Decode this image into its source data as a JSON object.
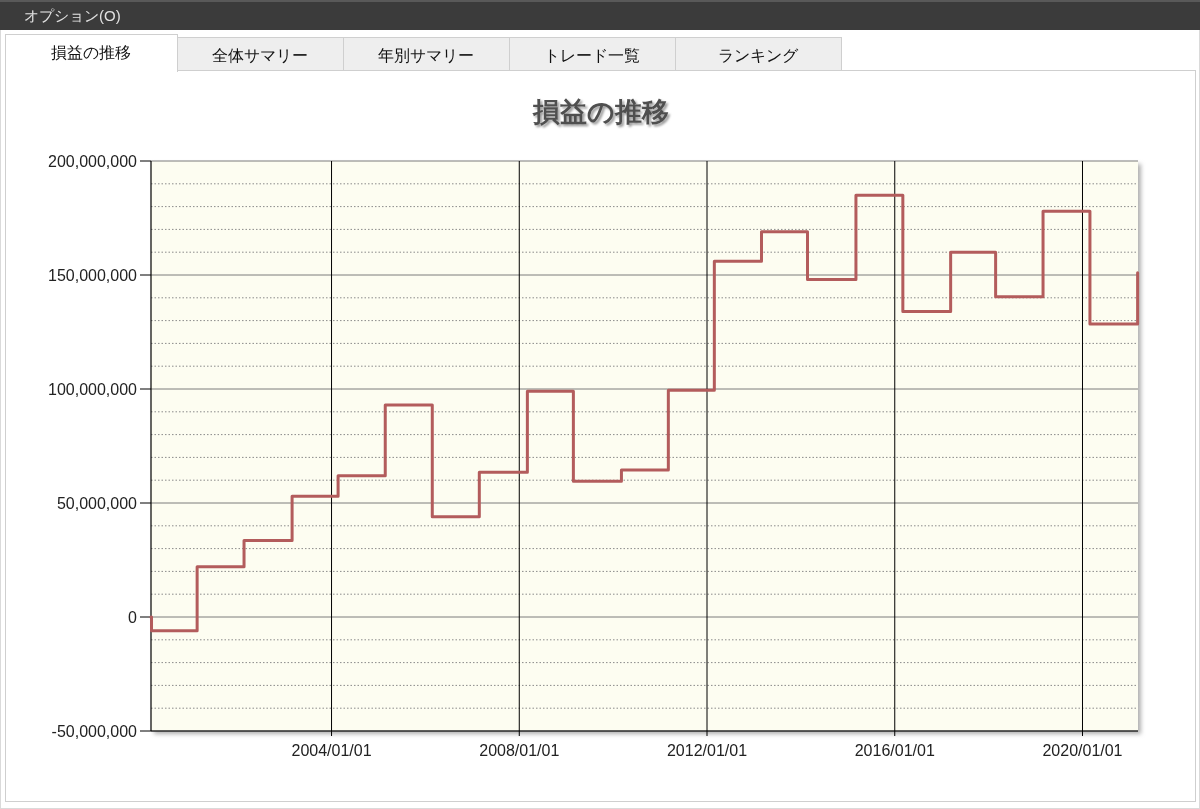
{
  "chart_data": {
    "type": "step",
    "title": "損益の推移",
    "annotations": [
      "オプション(O)",
      "損益の推移",
      "全体サマリー",
      "年別サマリー",
      "トレード一覧",
      "ランキング"
    ],
    "x": [
      "2000-02-26",
      "2000-03-01",
      "2001-02-19",
      "2002-02-19",
      "2003-02-28",
      "2004-02-21",
      "2005-02-22",
      "2006-02-23",
      "2007-02-24",
      "2008-03-04",
      "2009-02-25",
      "2010-03-06",
      "2011-03-06",
      "2012-02-27",
      "2013-02-28",
      "2014-02-21",
      "2015-03-05",
      "2016-03-04",
      "2017-03-11",
      "2018-02-24",
      "2019-02-28",
      "2020-02-28",
      "2021-03-05"
    ],
    "series": [
      {
        "color": "#b35c5c",
        "values": [
          0,
          -6000000,
          22000000,
          33500000,
          53000000,
          62000000,
          93000000,
          44000000,
          63500000,
          99000000,
          59500000,
          64500000,
          99500000,
          156000000,
          169000000,
          148000000,
          185000000,
          134000000,
          160000000,
          140500000,
          178000000,
          128500000,
          151000000
        ]
      }
    ],
    "xlim": [
      "2000-02-26",
      "2021-03-08"
    ],
    "xticks": [
      {
        "value": "2004-01-01",
        "label": "2004/01/01"
      },
      {
        "value": "2008-01-01",
        "label": "2008/01/01"
      },
      {
        "value": "2012-01-01",
        "label": "2012/01/01"
      },
      {
        "value": "2016-01-01",
        "label": "2016/01/01"
      },
      {
        "value": "2020-01-01",
        "label": "2020/01/01"
      }
    ],
    "ylim": [
      -50000000,
      200000000
    ],
    "yticks": [
      {
        "value": -50000000,
        "label": "-50,000,000"
      },
      {
        "value": -40000000,
        "label": null
      },
      {
        "value": -30000000,
        "label": null
      },
      {
        "value": -20000000,
        "label": null
      },
      {
        "value": -10000000,
        "label": null
      },
      0,
      {
        "value": 10000000,
        "label": null
      },
      {
        "value": 20000000,
        "label": null
      },
      {
        "value": 30000000,
        "label": null
      },
      {
        "value": 40000000,
        "label": null
      },
      {
        "value": 50000000,
        "label": "50,000,000"
      },
      {
        "value": 60000000,
        "label": null
      },
      {
        "value": 70000000,
        "label": null
      },
      {
        "value": 80000000,
        "label": null
      },
      {
        "value": 90000000,
        "label": null
      },
      {
        "value": 100000000,
        "label": "100,000,000"
      },
      {
        "value": 110000000,
        "label": null
      },
      {
        "value": 120000000,
        "label": null
      },
      {
        "value": 130000000,
        "label": null
      },
      {
        "value": 140000000,
        "label": null
      },
      {
        "value": 150000000,
        "label": "150,000,000"
      },
      {
        "value": 160000000,
        "label": null
      },
      {
        "value": 170000000,
        "label": null
      },
      {
        "value": 180000000,
        "label": null
      },
      {
        "value": 190000000,
        "label": null
      },
      {
        "value": 200000000,
        "label": "200,000,000"
      }
    ],
    "grid": true
  }
}
